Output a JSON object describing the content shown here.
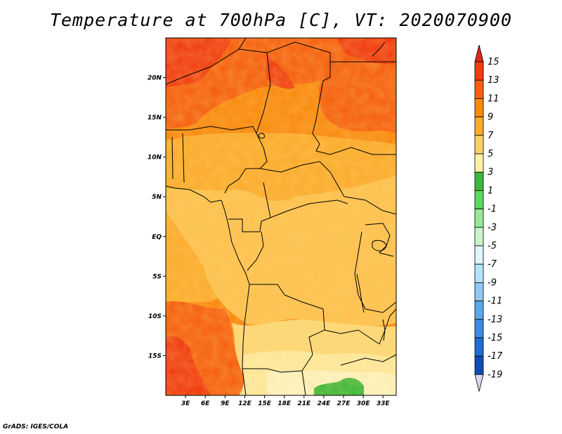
{
  "title": "Temperature at 700hPa [C], VT: 2020070900",
  "credit": "GrADS: IGES/COLA",
  "map": {
    "lon_range": [
      0,
      35
    ],
    "lat_range": [
      -20,
      25
    ],
    "lon_ticks": [
      {
        "lon": 3,
        "label": "3E"
      },
      {
        "lon": 6,
        "label": "6E"
      },
      {
        "lon": 9,
        "label": "9E"
      },
      {
        "lon": 12,
        "label": "12E"
      },
      {
        "lon": 15,
        "label": "15E"
      },
      {
        "lon": 18,
        "label": "18E"
      },
      {
        "lon": 21,
        "label": "21E"
      },
      {
        "lon": 24,
        "label": "24E"
      },
      {
        "lon": 27,
        "label": "27E"
      },
      {
        "lon": 30,
        "label": "30E"
      },
      {
        "lon": 33,
        "label": "33E"
      }
    ],
    "lat_ticks": [
      {
        "lat": 20,
        "label": "20N"
      },
      {
        "lat": 15,
        "label": "15N"
      },
      {
        "lat": 10,
        "label": "10N"
      },
      {
        "lat": 5,
        "label": "5N"
      },
      {
        "lat": 0,
        "label": "EQ"
      },
      {
        "lat": -5,
        "label": "5S"
      },
      {
        "lat": -10,
        "label": "10S"
      },
      {
        "lat": -15,
        "label": "15S"
      }
    ]
  },
  "colorbar": {
    "levels": [
      "15",
      "13",
      "11",
      "9",
      "7",
      "5",
      "3",
      "1",
      "-1",
      "-3",
      "-5",
      "-7",
      "-9",
      "-11",
      "-13",
      "-15",
      "-17",
      "-19"
    ],
    "colors": [
      "#f03c10",
      "#f56010",
      "#f98a10",
      "#fbac2e",
      "#fdd065",
      "#fdf1a8",
      "#3cb83c",
      "#5bd85b",
      "#96e996",
      "#c8f5c8",
      "#dff5fc",
      "#b4e4fb",
      "#8fc8f5",
      "#5aa8ec",
      "#3c8ce0",
      "#1e6ed2",
      "#0f4cb4",
      "#0a1a6e",
      "#d8d8f0"
    ],
    "top_color": "#e0261e",
    "bottom_color": "#d8d8f0"
  }
}
